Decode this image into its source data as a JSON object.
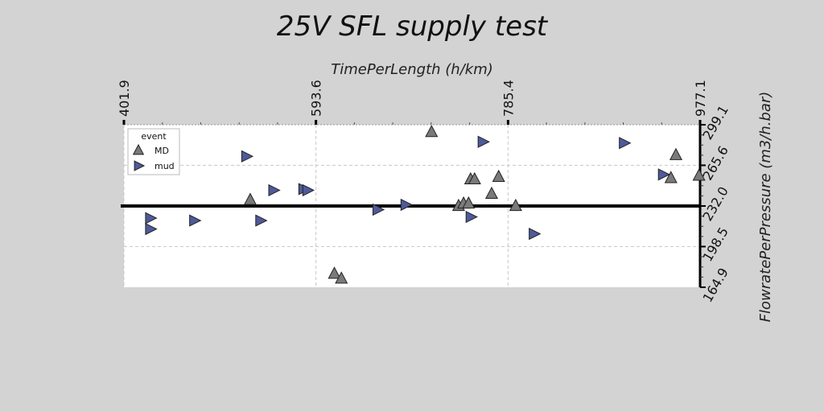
{
  "chart_data": {
    "type": "scatter",
    "title": "25V SFL supply test",
    "xlabel": "TimePerLength (h/km)",
    "ylabel": "FlowratePerPressure (m3/h.bar)",
    "xlim": [
      401.9,
      977.1
    ],
    "ylim": [
      164.9,
      299.1
    ],
    "x_ticks": [
      "401.9",
      "593.6",
      "785.4",
      "977.1"
    ],
    "y_ticks": [
      "164.9",
      "198.5",
      "232.0",
      "265.6",
      "299.1"
    ],
    "x_axis_position": "top",
    "y_axis_position": "right",
    "grid": true,
    "legend": {
      "title": "event",
      "position": "top-left"
    },
    "series": [
      {
        "name": "MD",
        "marker": "triangle-up",
        "color": "#7a7a7a",
        "points": [
          [
            709,
            293
          ],
          [
            736,
            232
          ],
          [
            741,
            234
          ],
          [
            746,
            234
          ],
          [
            748,
            254
          ],
          [
            752,
            254
          ],
          [
            769,
            242
          ],
          [
            776,
            256
          ],
          [
            793,
            232
          ],
          [
            528,
            237
          ],
          [
            612,
            176
          ],
          [
            619,
            172
          ],
          [
            948,
            255
          ],
          [
            953,
            274
          ],
          [
            976,
            257
          ]
        ]
      },
      {
        "name": "mud",
        "marker": "triangle-right",
        "color": "#4f5a9a",
        "points": [
          [
            760,
            285
          ],
          [
            901,
            284
          ],
          [
            524,
            273
          ],
          [
            428,
            222
          ],
          [
            428,
            213
          ],
          [
            472,
            220
          ],
          [
            551,
            245
          ],
          [
            581,
            246
          ],
          [
            585,
            245
          ],
          [
            655,
            229
          ],
          [
            683,
            233
          ],
          [
            748,
            223
          ],
          [
            811,
            209
          ],
          [
            940,
            258
          ],
          [
            538,
            220
          ]
        ]
      }
    ]
  }
}
